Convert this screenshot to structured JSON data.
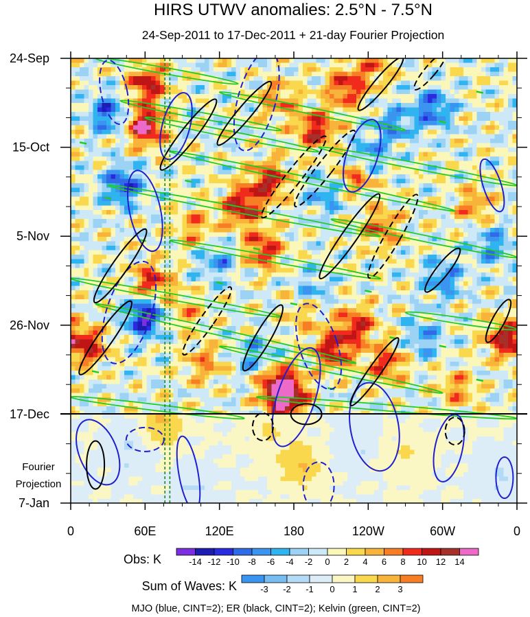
{
  "chart_data": {
    "type": "heatmap",
    "title": "HIRS UTWV anomalies: 2.5°N - 7.5°N",
    "subtitle": "24-Sep-2011 to 17-Dec-2011 + 21-day Fourier Projection",
    "x_ticks": [
      "0",
      "60E",
      "120E",
      "180",
      "120W",
      "60W",
      "0"
    ],
    "x_tick_values": [
      0,
      60,
      120,
      180,
      240,
      300,
      360
    ],
    "xlim": [
      0,
      360
    ],
    "y_ticks": [
      "24-Sep",
      "15-Oct",
      "5-Nov",
      "26-Nov",
      "17-Dec",
      "7-Jan"
    ],
    "y_tick_days": [
      0,
      21,
      42,
      63,
      84,
      105
    ],
    "ylim_days": [
      0,
      105
    ],
    "observation_end_day": 84,
    "projection_label_line1": "Fourier",
    "projection_label_line2": "Projection",
    "reference_longitudes": [
      76,
      80
    ],
    "obs_colorbar": {
      "label": "Obs: K",
      "levels": [
        "-14",
        "-12",
        "-10",
        "-8",
        "-6",
        "-4",
        "-2",
        "0",
        "2",
        "4",
        "6",
        "8",
        "10",
        "12",
        "14"
      ],
      "colors": [
        "#7b2fe0",
        "#1c1cb0",
        "#2a2ae0",
        "#2f6be6",
        "#3a94f0",
        "#30b4f0",
        "#9cd3f5",
        "#cde9f8",
        "#fbf7b8",
        "#fad84e",
        "#f8b33b",
        "#f77e24",
        "#f02a1c",
        "#c01515",
        "#a8302a",
        "#ee6ac8"
      ]
    },
    "waves_colorbar": {
      "label": "Sum of Waves: K",
      "levels": [
        "-3",
        "-2",
        "-1",
        "0",
        "1",
        "2",
        "3"
      ],
      "colors": [
        "#3a94f0",
        "#78bdf2",
        "#b4dbf6",
        "#dcedf8",
        "#fbf7c4",
        "#fad84e",
        "#f8b33b",
        "#f77e24"
      ]
    },
    "legend_text": "MJO (blue, CINT=2); ER (black, CINT=2); Kelvin (green, CINT=2)",
    "series": [
      {
        "name": "MJO",
        "color": "#1f1fd0",
        "cint": 2
      },
      {
        "name": "ER",
        "color": "#000000",
        "cint": 2
      },
      {
        "name": "Kelvin",
        "color": "#22cc22",
        "cint": 2
      }
    ],
    "anomaly_centers": [
      {
        "lon": 62,
        "day": 6,
        "val": 11
      },
      {
        "lon": 60,
        "day": 16,
        "val": 14
      },
      {
        "lon": 30,
        "day": 13,
        "val": -9
      },
      {
        "lon": 42,
        "day": 30,
        "val": -10
      },
      {
        "lon": 60,
        "day": 61,
        "val": -14
      },
      {
        "lon": 14,
        "day": 68,
        "val": 10
      },
      {
        "lon": 65,
        "day": 53,
        "val": 10
      },
      {
        "lon": 100,
        "day": 40,
        "val": 6
      },
      {
        "lon": 118,
        "day": 48,
        "val": -6
      },
      {
        "lon": 138,
        "day": 35,
        "val": 12
      },
      {
        "lon": 155,
        "day": 45,
        "val": 10
      },
      {
        "lon": 160,
        "day": 29,
        "val": 11
      },
      {
        "lon": 168,
        "day": 10,
        "val": 7
      },
      {
        "lon": 198,
        "day": 17,
        "val": 11
      },
      {
        "lon": 222,
        "day": 7,
        "val": 10
      },
      {
        "lon": 232,
        "day": 27,
        "val": 11
      },
      {
        "lon": 244,
        "day": 2,
        "val": 6
      },
      {
        "lon": 238,
        "day": 24,
        "val": -10
      },
      {
        "lon": 260,
        "day": 16,
        "val": -7
      },
      {
        "lon": 250,
        "day": 40,
        "val": 8
      },
      {
        "lon": 230,
        "day": 63,
        "val": 10
      },
      {
        "lon": 212,
        "day": 69,
        "val": 11
      },
      {
        "lon": 255,
        "day": 72,
        "val": 9
      },
      {
        "lon": 168,
        "day": 77,
        "val": 12
      },
      {
        "lon": 174,
        "day": 80,
        "val": 14
      },
      {
        "lon": 150,
        "day": 70,
        "val": -6
      },
      {
        "lon": 108,
        "day": 72,
        "val": 6
      },
      {
        "lon": 292,
        "day": 12,
        "val": -9
      },
      {
        "lon": 300,
        "day": 52,
        "val": -7
      },
      {
        "lon": 326,
        "day": 35,
        "val": 6
      },
      {
        "lon": 350,
        "day": 66,
        "val": 11
      },
      {
        "lon": 340,
        "day": 44,
        "val": -7
      },
      {
        "lon": 205,
        "day": 32,
        "val": -6
      },
      {
        "lon": 92,
        "day": 60,
        "val": 5
      },
      {
        "lon": 195,
        "day": 55,
        "val": -5
      },
      {
        "lon": 285,
        "day": 66,
        "val": -6
      },
      {
        "lon": 312,
        "day": 78,
        "val": 6
      },
      {
        "lon": 188,
        "day": 60,
        "val": 5
      }
    ],
    "projection_centers": [
      {
        "lon": 75,
        "day": 86,
        "val": 2
      },
      {
        "lon": 45,
        "day": 93,
        "val": -1
      },
      {
        "lon": 160,
        "day": 88,
        "val": 1
      },
      {
        "lon": 185,
        "day": 96,
        "val": 2
      },
      {
        "lon": 230,
        "day": 90,
        "val": -1
      },
      {
        "lon": 272,
        "day": 94,
        "val": 1
      },
      {
        "lon": 345,
        "day": 99,
        "val": -1
      },
      {
        "lon": 98,
        "day": 101,
        "val": -1
      }
    ],
    "mjo_contours": [
      {
        "lon": 235,
        "day": 23,
        "w": 45,
        "h": 110,
        "rot": 18,
        "dash": false
      },
      {
        "lon": 150,
        "day": 10,
        "w": 55,
        "h": 150,
        "rot": 15,
        "dash": true
      },
      {
        "lon": 60,
        "day": 36,
        "w": 45,
        "h": 120,
        "rot": -12,
        "dash": false
      },
      {
        "lon": 47,
        "day": 60,
        "w": 65,
        "h": 155,
        "rot": 18,
        "dash": true
      },
      {
        "lon": 35,
        "day": 8,
        "w": 38,
        "h": 95,
        "rot": -12,
        "dash": true
      },
      {
        "lon": 340,
        "day": 30,
        "w": 26,
        "h": 80,
        "rot": -18,
        "dash": false
      },
      {
        "lon": 182,
        "day": 80,
        "w": 55,
        "h": 150,
        "rot": 18,
        "dash": false
      },
      {
        "lon": 245,
        "day": 87,
        "w": 70,
        "h": 130,
        "rot": -10,
        "dash": false
      },
      {
        "lon": 95,
        "day": 98,
        "w": 28,
        "h": 110,
        "rot": -10,
        "dash": false
      },
      {
        "lon": 22,
        "day": 93,
        "w": 55,
        "h": 100,
        "rot": -22,
        "dash": false
      },
      {
        "lon": 305,
        "day": 92,
        "w": 40,
        "h": 100,
        "rot": 12,
        "dash": false
      },
      {
        "lon": 60,
        "day": 90,
        "w": 55,
        "h": 35,
        "rot": 0,
        "dash": true
      },
      {
        "lon": 200,
        "day": 101,
        "w": 45,
        "h": 70,
        "rot": 0,
        "dash": true
      },
      {
        "lon": 350,
        "day": 99,
        "w": 25,
        "h": 60,
        "rot": 0,
        "dash": false
      },
      {
        "lon": 200,
        "day": 68,
        "w": 55,
        "h": 130,
        "rot": -18,
        "dash": true
      },
      {
        "lon": 85,
        "day": 16,
        "w": 40,
        "h": 100,
        "rot": 15,
        "dash": false
      }
    ],
    "er_contours": [
      {
        "lon": 95,
        "day": 18,
        "w": 22,
        "h": 130,
        "rot": 38,
        "dash": false
      },
      {
        "lon": 140,
        "day": 13,
        "w": 20,
        "h": 120,
        "rot": 40,
        "dash": false
      },
      {
        "lon": 180,
        "day": 28,
        "w": 22,
        "h": 150,
        "rot": 38,
        "dash": true
      },
      {
        "lon": 225,
        "day": 42,
        "w": 22,
        "h": 150,
        "rot": 35,
        "dash": false
      },
      {
        "lon": 205,
        "day": 26,
        "w": 22,
        "h": 140,
        "rot": 38,
        "dash": true
      },
      {
        "lon": 260,
        "day": 42,
        "w": 22,
        "h": 140,
        "rot": 30,
        "dash": true
      },
      {
        "lon": 300,
        "day": 50,
        "w": 18,
        "h": 80,
        "rot": 38,
        "dash": false
      },
      {
        "lon": 110,
        "day": 62,
        "w": 20,
        "h": 120,
        "rot": 35,
        "dash": true
      },
      {
        "lon": 40,
        "day": 49,
        "w": 22,
        "h": 130,
        "rot": 35,
        "dash": false
      },
      {
        "lon": 28,
        "day": 66,
        "w": 22,
        "h": 130,
        "rot": 35,
        "dash": false
      },
      {
        "lon": 155,
        "day": 66,
        "w": 22,
        "h": 110,
        "rot": 30,
        "dash": false
      },
      {
        "lon": 245,
        "day": 74,
        "w": 18,
        "h": 120,
        "rot": 35,
        "dash": false
      },
      {
        "lon": 345,
        "day": 62,
        "w": 18,
        "h": 70,
        "rot": 28,
        "dash": false
      },
      {
        "lon": 250,
        "day": 6,
        "w": 18,
        "h": 100,
        "rot": 40,
        "dash": false
      },
      {
        "lon": 290,
        "day": 3,
        "w": 16,
        "h": 70,
        "rot": 40,
        "dash": true
      },
      {
        "lon": 20,
        "day": 96,
        "w": 26,
        "h": 70,
        "rot": 0,
        "dash": false
      },
      {
        "lon": 155,
        "day": 87,
        "w": 30,
        "h": 40,
        "rot": 0,
        "dash": true
      },
      {
        "lon": 310,
        "day": 88,
        "w": 28,
        "h": 40,
        "rot": 0,
        "dash": true
      },
      {
        "lon": 190,
        "day": 84,
        "w": 45,
        "h": 30,
        "rot": 0,
        "dash": false
      }
    ],
    "kelvin_bands": [
      {
        "lon1": 20,
        "day1": 0,
        "lon2": 135,
        "day2": 6
      },
      {
        "lon1": 40,
        "day1": 10,
        "lon2": 170,
        "day2": 17
      },
      {
        "lon1": 120,
        "day1": 8,
        "lon2": 270,
        "day2": 17
      },
      {
        "lon1": 60,
        "day1": 14,
        "lon2": 200,
        "day2": 22
      },
      {
        "lon1": 80,
        "day1": 22,
        "lon2": 310,
        "day2": 36
      },
      {
        "lon1": 30,
        "day1": 30,
        "lon2": 250,
        "day2": 42
      },
      {
        "lon1": 200,
        "day1": 21,
        "lon2": 360,
        "day2": 30
      },
      {
        "lon1": 0,
        "day1": 52,
        "lon2": 170,
        "day2": 61
      },
      {
        "lon1": 80,
        "day1": 43,
        "lon2": 250,
        "day2": 52
      },
      {
        "lon1": 20,
        "day1": 58,
        "lon2": 230,
        "day2": 72
      },
      {
        "lon1": 120,
        "day1": 68,
        "lon2": 300,
        "day2": 79
      },
      {
        "lon1": 210,
        "day1": 38,
        "lon2": 360,
        "day2": 47
      },
      {
        "lon1": 270,
        "day1": 60,
        "lon2": 360,
        "day2": 64
      },
      {
        "lon1": 0,
        "day1": 80,
        "lon2": 140,
        "day2": 85
      },
      {
        "lon1": 150,
        "day1": 80,
        "lon2": 360,
        "day2": 85
      }
    ],
    "kelvin_dashes": [
      {
        "lon": 10,
        "day": 20
      },
      {
        "lon": 30,
        "day": 33
      },
      {
        "lon": 58,
        "day": 43
      },
      {
        "lon": 150,
        "day": 45
      },
      {
        "lon": 240,
        "day": 55
      },
      {
        "lon": 330,
        "day": 8
      },
      {
        "lon": 300,
        "day": 15
      },
      {
        "lon": 20,
        "day": 74
      },
      {
        "lon": 260,
        "day": 66
      },
      {
        "lon": 180,
        "day": 58
      },
      {
        "lon": 95,
        "day": 29
      },
      {
        "lon": 330,
        "day": 76
      },
      {
        "lon": 210,
        "day": 78
      },
      {
        "lon": 300,
        "day": 68
      },
      {
        "lon": 120,
        "day": 53
      }
    ]
  }
}
